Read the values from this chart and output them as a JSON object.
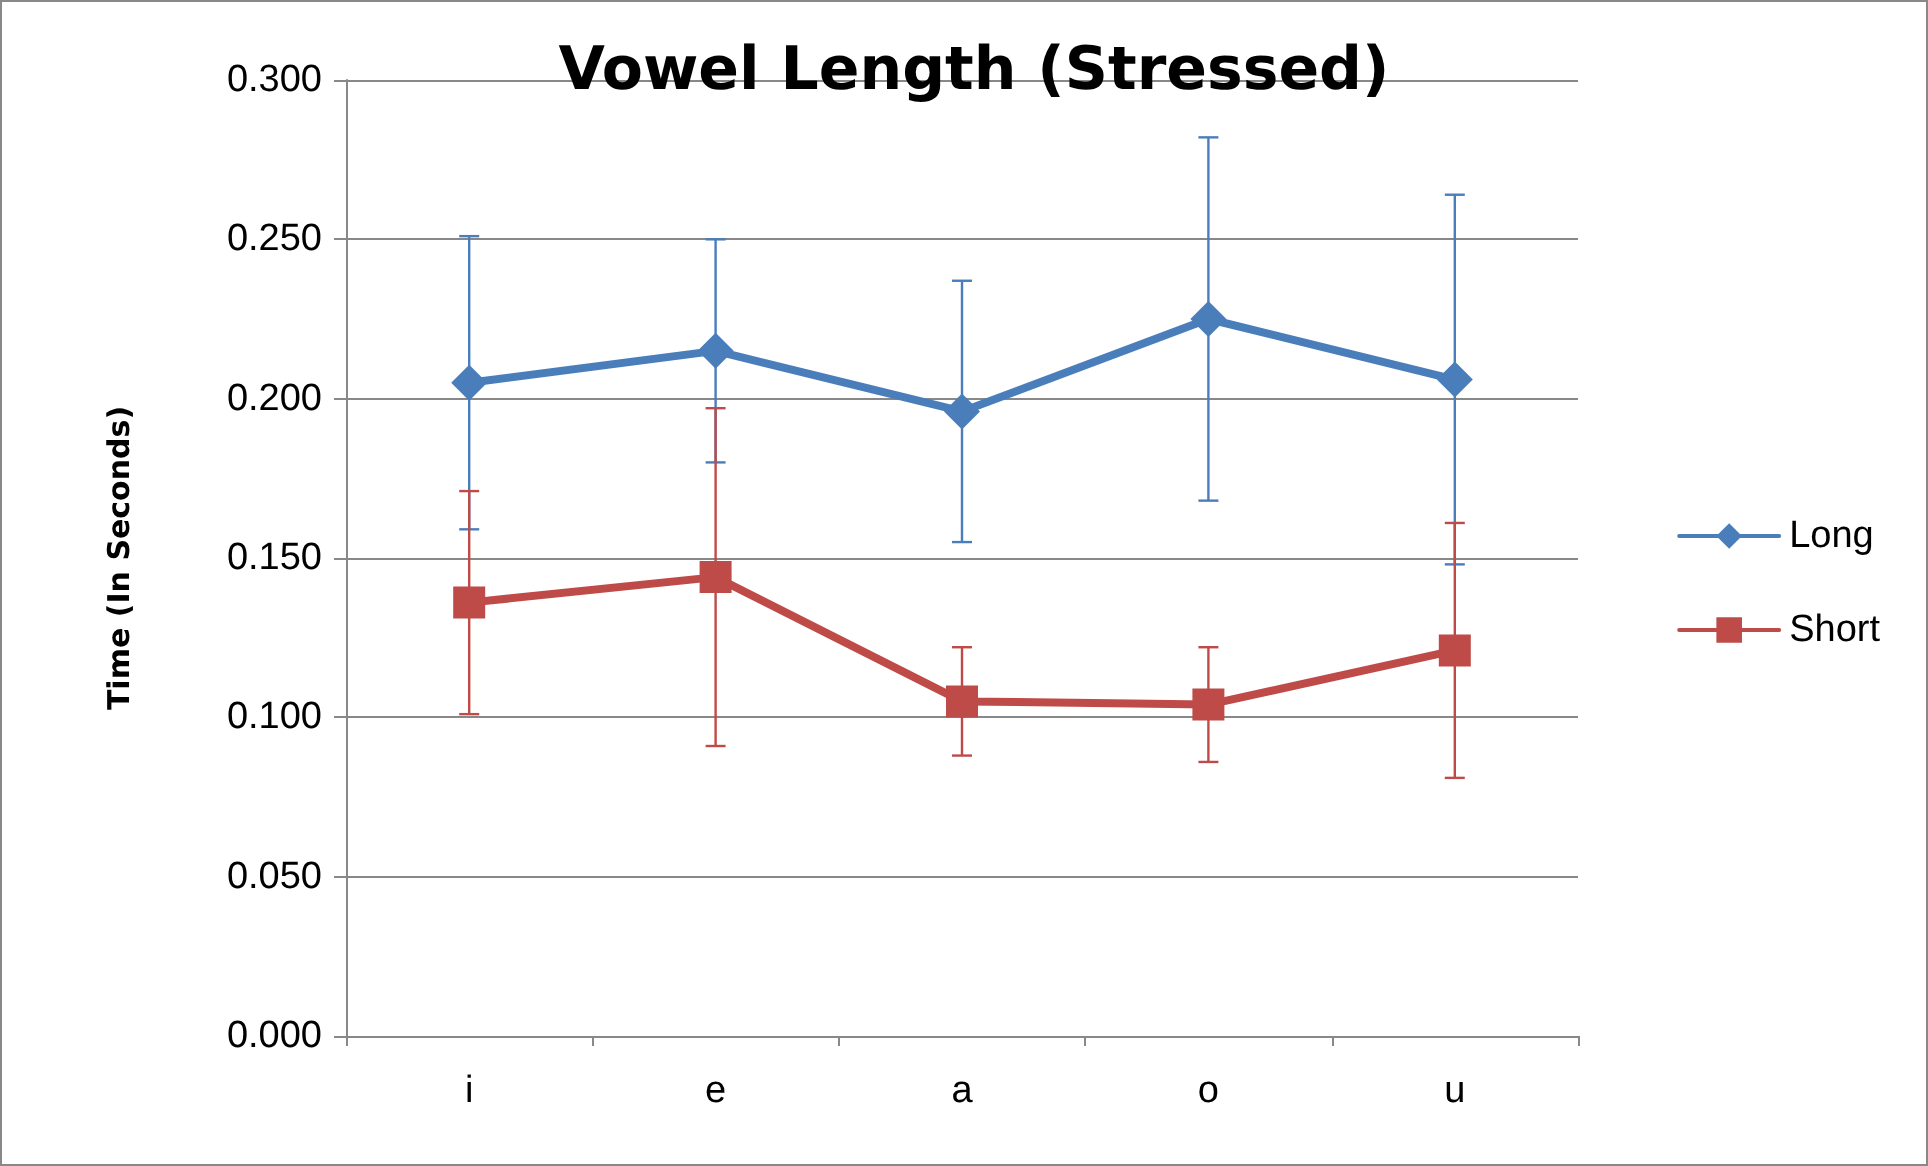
{
  "chart_data": {
    "type": "line",
    "title": "Vowel Length (Stressed)",
    "ylabel": "Time (In Seconds)",
    "categories": [
      "i",
      "e",
      "a",
      "o",
      "u"
    ],
    "series": [
      {
        "name": "Long",
        "color": "#4a7ebb",
        "marker": "diamond",
        "values": [
          0.205,
          0.215,
          0.196,
          0.225,
          0.206
        ],
        "errors": [
          0.046,
          0.035,
          0.041,
          0.057,
          0.058
        ]
      },
      {
        "name": "Short",
        "color": "#be4b48",
        "marker": "square",
        "values": [
          0.136,
          0.144,
          0.105,
          0.104,
          0.121
        ],
        "errors": [
          0.035,
          0.053,
          0.017,
          0.018,
          0.04
        ]
      }
    ],
    "ylim": [
      0,
      0.3
    ],
    "yticks": [
      {
        "value": 0,
        "label": "0.000"
      },
      {
        "value": 0.05,
        "label": "0.050"
      },
      {
        "value": 0.1,
        "label": "0.100"
      },
      {
        "value": 0.15,
        "label": "0.150"
      },
      {
        "value": 0.2,
        "label": "0.200"
      },
      {
        "value": 0.25,
        "label": "0.250"
      },
      {
        "value": 0.3,
        "label": "0.300"
      }
    ],
    "grid": "y",
    "legend": "right"
  }
}
